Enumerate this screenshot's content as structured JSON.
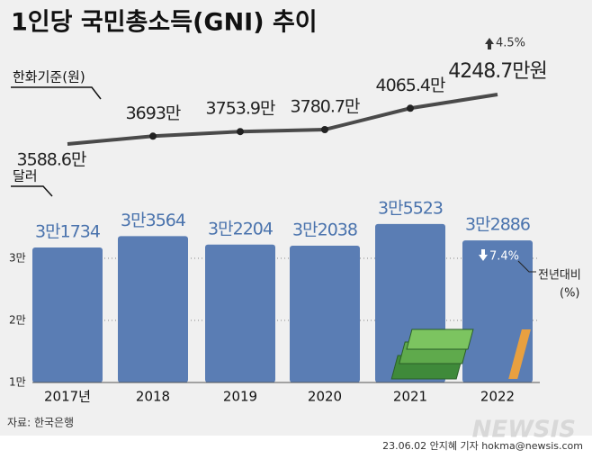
{
  "title": "1인당 국민총소득(GNI) 추이",
  "source": "자료: 한국은행",
  "credit": "23.06.02 안지혜 기자 hokma@newsis.com",
  "watermark": "NEWSIS",
  "chart_data": [
    {
      "type": "line",
      "label": "한화기준(원)",
      "values": [
        3588.6,
        3693,
        3753.9,
        3780.7,
        4065.4,
        4248.7
      ],
      "value_labels": [
        "3588.6만",
        "3693만",
        "3753.9만",
        "3780.7만",
        "4065.4만",
        "4248.7만원"
      ],
      "color": "#4a4a4a",
      "annotation": {
        "value": 4.5,
        "label": "4.5%"
      }
    },
    {
      "type": "bar",
      "label": "달러",
      "categories": [
        "2017년",
        "2018",
        "2019",
        "2020",
        "2021",
        "2022"
      ],
      "values": [
        31734,
        33564,
        32204,
        32038,
        35523,
        32886
      ],
      "value_labels": [
        "3만1734",
        "3만3564",
        "3만2204",
        "3만2038",
        "3만5523",
        "3만2886"
      ],
      "color": "#5a7db4",
      "label_color": "#4a73ad",
      "ylim": [
        10000,
        37000
      ],
      "yticks": [
        {
          "value": 10000,
          "label": "1만"
        },
        {
          "value": 20000,
          "label": "2만"
        },
        {
          "value": 30000,
          "label": "3만"
        }
      ],
      "grid": true,
      "annotation": {
        "value": -7.4,
        "label": "7.4%"
      },
      "annotation_note": [
        "전년대비",
        "(%)"
      ]
    }
  ]
}
